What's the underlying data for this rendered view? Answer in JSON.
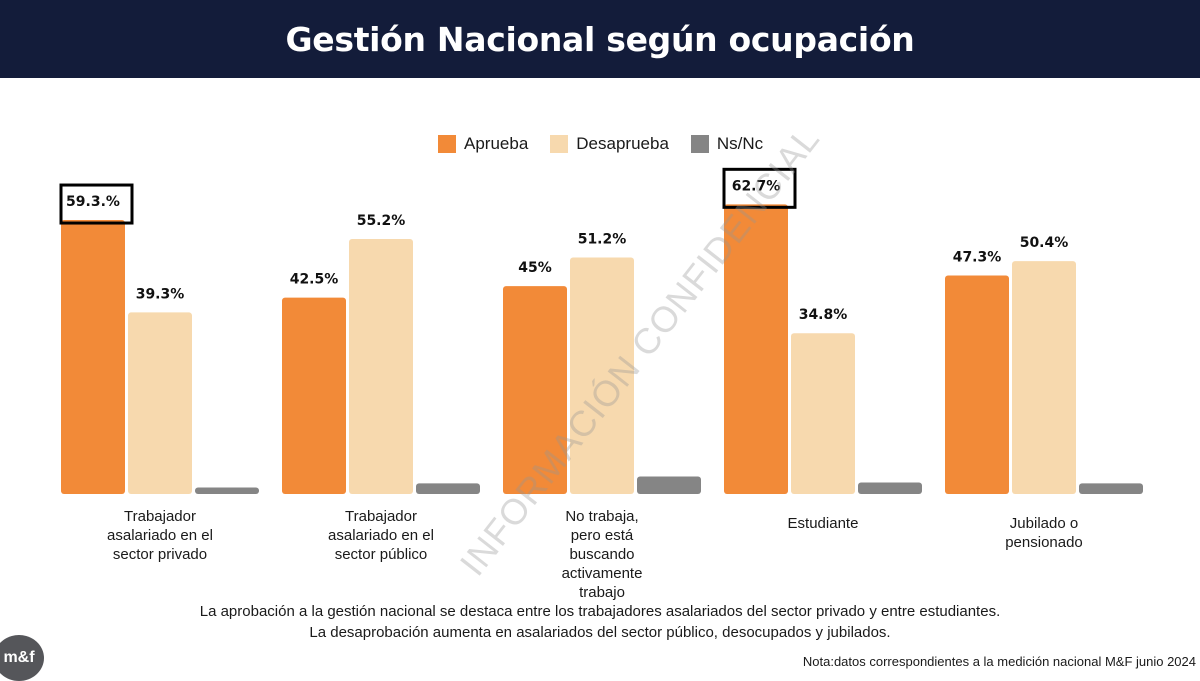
{
  "header": {
    "title": "Gestión Nacional según ocupación"
  },
  "watermark": "INFORMACIÓN CONFIDENCIAL",
  "legend": [
    {
      "label": "Aprueba",
      "color": "#f28a38"
    },
    {
      "label": "Desaprueba",
      "color": "#f7d9ae"
    },
    {
      "label": "Ns/Nc",
      "color": "#858585"
    }
  ],
  "chart_data": {
    "type": "bar",
    "categories": [
      "Trabajador asalariado en el sector privado",
      "Trabajador asalariado en el sector público",
      "No trabaja, pero está buscando activamente trabajo",
      "Estudiante",
      "Jubilado o pensionado"
    ],
    "series": [
      {
        "name": "Aprueba",
        "values": [
          59.3,
          42.5,
          45,
          62.7,
          47.3
        ],
        "labels": [
          "59.3.%",
          "42.5%",
          "45%",
          "62.7%",
          "47.3%"
        ],
        "color": "#f28a38"
      },
      {
        "name": "Desaprueba",
        "values": [
          39.3,
          55.2,
          51.2,
          34.8,
          50.4
        ],
        "labels": [
          "39.3%",
          "55.2%",
          "51.2%",
          "34.8%",
          "50.4%"
        ],
        "color": "#f7d9ae"
      },
      {
        "name": "Ns/Nc",
        "values": [
          1.4,
          2.3,
          3.8,
          2.5,
          2.3
        ],
        "labels": [
          "",
          "",
          "",
          "",
          ""
        ],
        "color": "#858585"
      }
    ],
    "highlighted": [
      "Trabajador asalariado en el sector privado",
      "Estudiante"
    ],
    "ylim": [
      0,
      65
    ],
    "grid": false,
    "legend_position": "top"
  },
  "category_lines": [
    [
      "Trabajador",
      "asalariado en el",
      "sector privado"
    ],
    [
      "Trabajador",
      "asalariado en el",
      "sector público"
    ],
    [
      "No trabaja,",
      "pero está",
      "buscando",
      "activamente",
      "trabajo"
    ],
    [
      "Estudiante"
    ],
    [
      "Jubilado o",
      "pensionado"
    ]
  ],
  "footer": {
    "line1": "La aprobación a la gestión nacional  se destaca entre los trabajadores asalariados del sector privado y entre estudiantes.",
    "line2": "La desaprobación aumenta en asalariados del sector público, desocupados y jubilados.",
    "note": "Nota:datos correspondientes a la medición nacional M&F junio 2024",
    "logo": "m&f"
  }
}
